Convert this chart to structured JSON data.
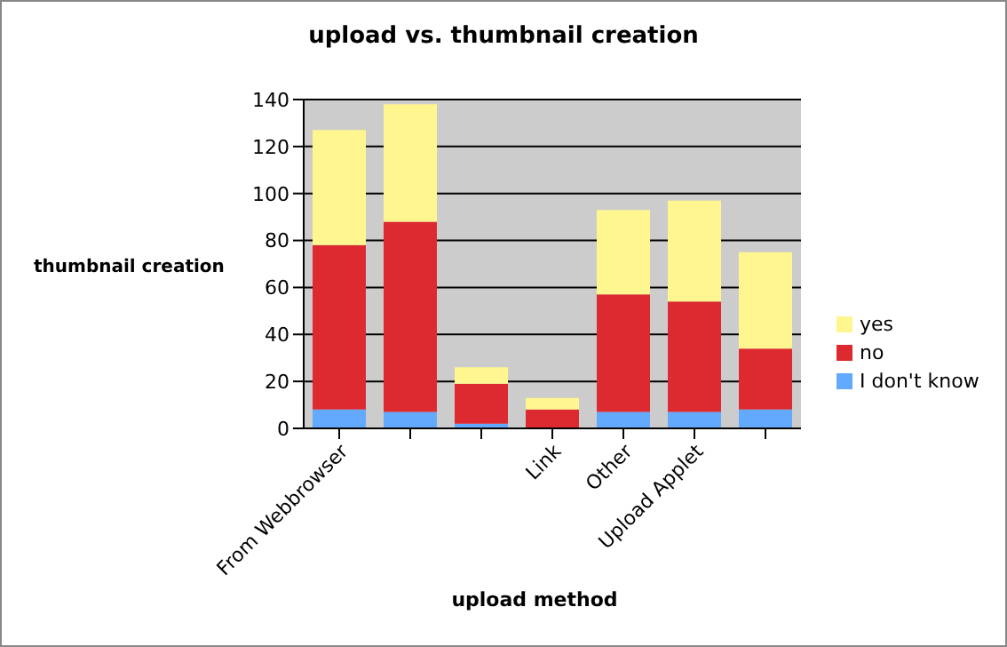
{
  "chart_data": {
    "type": "bar",
    "title": "upload vs. thumbnail creation",
    "xlabel": "upload method",
    "ylabel": "thumbnail creation",
    "categories": [
      "From Webbrowser",
      null,
      null,
      "Link",
      "Other",
      "Upload Applet",
      null
    ],
    "series": [
      {
        "name": "I don't know",
        "color": "#63aaff",
        "values": [
          8,
          7,
          2,
          0,
          7,
          7,
          8
        ]
      },
      {
        "name": "no",
        "color": "#dd2a30",
        "values": [
          70,
          81,
          17,
          8,
          50,
          47,
          26
        ]
      },
      {
        "name": "yes",
        "color": "#fff68f",
        "values": [
          49,
          50,
          7,
          5,
          36,
          43,
          41
        ]
      }
    ],
    "stacked": true,
    "ylim": [
      0,
      140
    ],
    "yticks": [
      0,
      20,
      40,
      60,
      80,
      100,
      120,
      140
    ],
    "grid": "y",
    "legend": "right"
  }
}
